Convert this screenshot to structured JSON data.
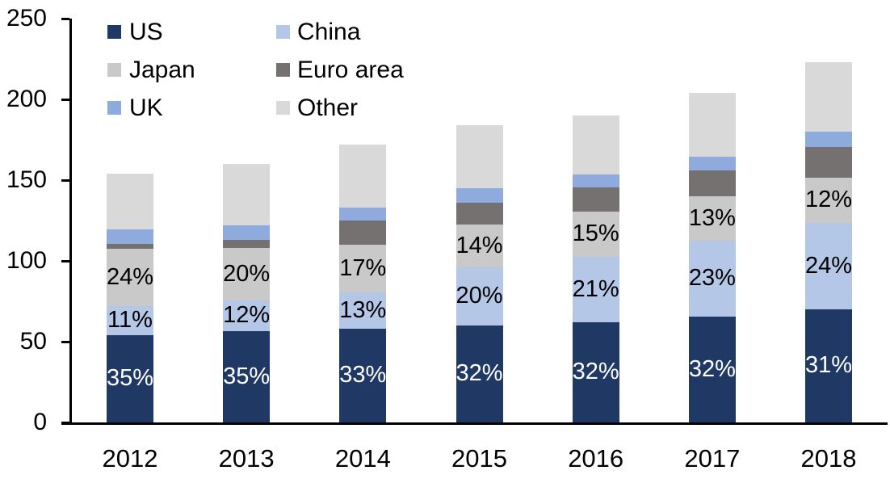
{
  "chart_data": {
    "type": "bar",
    "stacked": true,
    "title": "",
    "categories": [
      "2012",
      "2013",
      "2014",
      "2015",
      "2016",
      "2017",
      "2018"
    ],
    "series": [
      {
        "name": "US",
        "color": "#1F3864",
        "values": [
          54,
          56.5,
          58,
          60,
          62,
          65.5,
          70
        ],
        "labels": [
          "35%",
          "35%",
          "33%",
          "32%",
          "32%",
          "32%",
          "31%"
        ],
        "label_color": "#FFFFFF"
      },
      {
        "name": "China",
        "color": "#B4C7E7",
        "values": [
          18,
          19,
          22.5,
          36,
          40.5,
          47,
          53.5
        ],
        "labels": [
          "11%",
          "12%",
          "13%",
          "20%",
          "21%",
          "23%",
          "24%"
        ],
        "label_color": "#000000"
      },
      {
        "name": "Japan",
        "color": "#C9C9C9",
        "values": [
          35.5,
          32.5,
          29.5,
          26.5,
          28,
          27.5,
          28
        ],
        "labels": [
          "24%",
          "20%",
          "17%",
          "14%",
          "15%",
          "13%",
          "12%"
        ],
        "label_color": "#000000"
      },
      {
        "name": "Euro area",
        "color": "#767171",
        "values": [
          3,
          5,
          15,
          13.5,
          15,
          16,
          19
        ],
        "labels": null,
        "label_color": null
      },
      {
        "name": "UK",
        "color": "#8FAADC",
        "values": [
          9,
          9,
          8,
          9,
          8,
          8.5,
          9.5
        ],
        "labels": null,
        "label_color": null
      },
      {
        "name": "Other",
        "color": "#D9D9D9",
        "values": [
          34.5,
          38,
          39,
          39,
          36.5,
          39.5,
          43
        ],
        "labels": null,
        "label_color": null
      }
    ],
    "totals": [
      154,
      160,
      172,
      184,
      190,
      204,
      223
    ],
    "y_axis": {
      "min": 0,
      "max": 250,
      "tick_step": 50,
      "tick_labels": [
        "0",
        "50",
        "100",
        "150",
        "200",
        "250"
      ]
    },
    "x_axis": {
      "tick_labels": [
        "2012",
        "2013",
        "2014",
        "2015",
        "2016",
        "2017",
        "2018"
      ]
    },
    "legend": {
      "position": "top-left",
      "items": [
        "US",
        "China",
        "Japan",
        "Euro area",
        "UK",
        "Other"
      ]
    },
    "grid": false
  }
}
